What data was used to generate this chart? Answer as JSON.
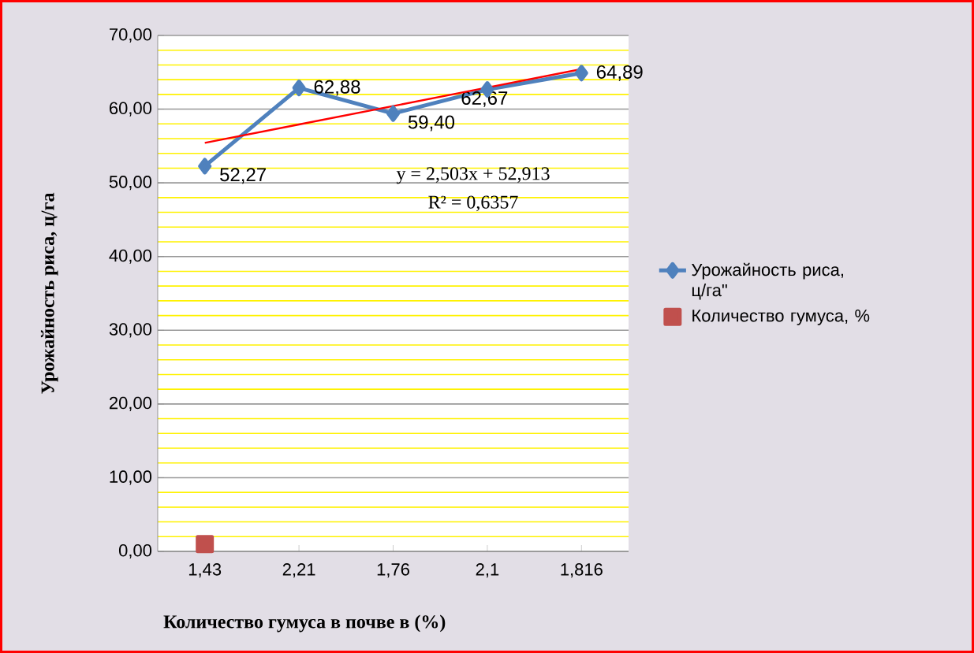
{
  "chart_data": {
    "type": "line",
    "xlabel": "Количество гумуса в почве в (%)",
    "ylabel": "Урожайность риса, ц/га",
    "categories": [
      "1,43",
      "2,21",
      "1,76",
      "2,1",
      "1,816"
    ],
    "series": [
      {
        "name": "Урожайность риса, ц/га\"",
        "color": "#4f81bd",
        "marker": "diamond",
        "values": [
          52.27,
          62.88,
          59.4,
          62.67,
          64.89
        ],
        "value_labels": [
          "52,27",
          "62,88",
          "59,40",
          "62,67",
          "64,89"
        ]
      },
      {
        "name": "Количество гумуса, %",
        "color": "#c0504d",
        "marker": "square",
        "line_style": "none",
        "values": [
          1.0,
          null,
          null,
          null,
          null
        ]
      },
      {
        "type": "line",
        "color": "#ff0000",
        "marker": "none",
        "values": [
          55.42,
          57.92,
          60.42,
          62.93,
          65.43
        ]
      }
    ],
    "annotations": [
      "y = 2,503x + 52,913",
      "R² = 0,6357"
    ],
    "ylim": [
      0,
      70
    ],
    "yticks": [
      {
        "value": 0,
        "label": "0,00"
      },
      {
        "value": 2,
        "label": null
      },
      {
        "value": 4,
        "label": null
      },
      {
        "value": 6,
        "label": null
      },
      {
        "value": 8,
        "label": null
      },
      {
        "value": 10,
        "label": "10,00"
      },
      {
        "value": 12,
        "label": null
      },
      {
        "value": 14,
        "label": null
      },
      {
        "value": 16,
        "label": null
      },
      {
        "value": 18,
        "label": null
      },
      {
        "value": 20,
        "label": "20,00"
      },
      {
        "value": 22,
        "label": null
      },
      {
        "value": 24,
        "label": null
      },
      {
        "value": 26,
        "label": null
      },
      {
        "value": 28,
        "label": null
      },
      {
        "value": 30,
        "label": "30,00"
      },
      {
        "value": 32,
        "label": null
      },
      {
        "value": 34,
        "label": null
      },
      {
        "value": 36,
        "label": null
      },
      {
        "value": 38,
        "label": null
      },
      {
        "value": 40,
        "label": "40,00"
      },
      {
        "value": 42,
        "label": null
      },
      {
        "value": 44,
        "label": null
      },
      {
        "value": 46,
        "label": null
      },
      {
        "value": 48,
        "label": null
      },
      {
        "value": 50,
        "label": "50,00"
      },
      {
        "value": 52,
        "label": null
      },
      {
        "value": 54,
        "label": null
      },
      {
        "value": 56,
        "label": null
      },
      {
        "value": 58,
        "label": null
      },
      {
        "value": 60,
        "label": "60,00"
      },
      {
        "value": 62,
        "label": null
      },
      {
        "value": 64,
        "label": null
      },
      {
        "value": 66,
        "label": null
      },
      {
        "value": 68,
        "label": null
      },
      {
        "value": 70,
        "label": "70,00"
      }
    ],
    "grid": "y",
    "legend": "right"
  }
}
